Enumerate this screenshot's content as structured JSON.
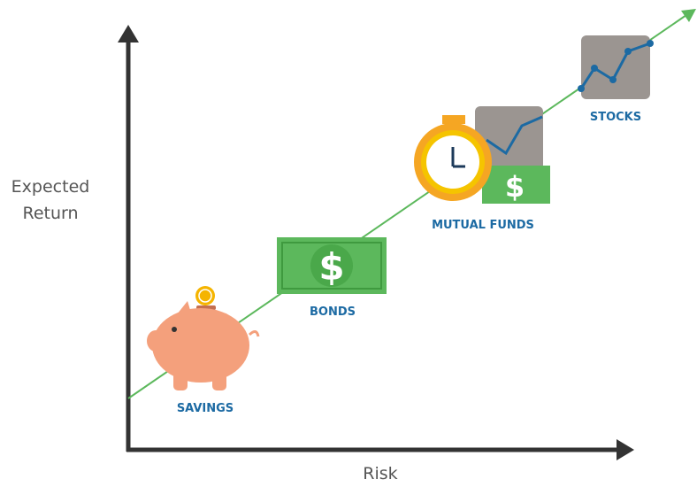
{
  "axes": {
    "y_label": "Expected Return",
    "x_label": "Risk"
  },
  "nodes": [
    {
      "label": "SAVINGS"
    },
    {
      "label": "BONDS"
    },
    {
      "label": "MUTUAL FUNDS"
    },
    {
      "label": "STOCKS"
    }
  ],
  "currency_symbol": "$"
}
